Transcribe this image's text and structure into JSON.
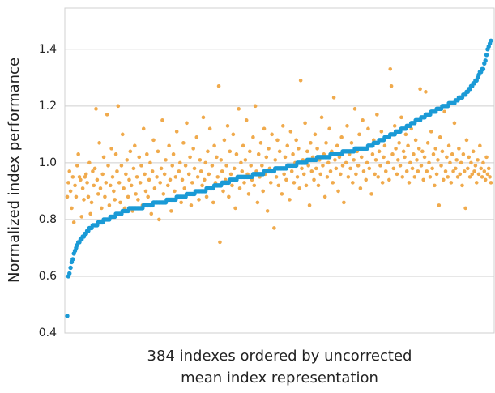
{
  "chart_data": {
    "type": "scatter",
    "ylabel": "Normalized index performance",
    "xlabel": [
      "384 indexes ordered by uncorrected",
      "mean index representation"
    ],
    "ylim": [
      0.4,
      1.545
    ],
    "yticks": [
      0.4,
      0.6,
      0.8,
      {
        "value": 1,
        "label": "1.0"
      },
      1.2,
      1.4
    ],
    "grid": true,
    "series": [
      {
        "color": "#f0aa4c",
        "values": [
          0.88,
          0.93,
          0.97,
          0.9,
          0.84,
          0.95,
          0.79,
          0.92,
          0.88,
          0.99,
          1.03,
          0.95,
          0.94,
          0.81,
          0.91,
          0.87,
          0.95,
          0.96,
          0.93,
          0.88,
          1.0,
          0.82,
          0.86,
          0.97,
          0.92,
          0.98,
          1.19,
          0.94,
          0.89,
          1.07,
          0.91,
          0.84,
          0.96,
          1.02,
          0.88,
          0.93,
          1.17,
          0.99,
          0.85,
          0.92,
          1.05,
          0.95,
          0.9,
          0.87,
          1.03,
          0.97,
          1.2,
          0.93,
          0.86,
          0.99,
          1.1,
          0.91,
          0.84,
          0.96,
          1.01,
          0.88,
          0.94,
          1.04,
          0.92,
          0.83,
          0.98,
          1.06,
          0.89,
          0.95,
          0.87,
          1.02,
          0.93,
          0.99,
          0.85,
          1.12,
          0.96,
          0.9,
          1.03,
          0.88,
          0.94,
          1.0,
          0.82,
          0.97,
          1.08,
          0.91,
          0.86,
          0.95,
          1.04,
          0.8,
          0.93,
          0.98,
          1.15,
          0.89,
          0.96,
          1.01,
          0.87,
          0.92,
          1.06,
          0.94,
          0.83,
          0.99,
          1.03,
          0.9,
          0.95,
          1.11,
          0.88,
          0.97,
          1.0,
          0.86,
          0.94,
          1.07,
          0.91,
          0.99,
          1.14,
          0.89,
          0.96,
          1.02,
          0.85,
          0.93,
          1.05,
          0.98,
          0.9,
          1.09,
          0.95,
          0.87,
          1.01,
          0.97,
          0.92,
          1.16,
          0.94,
          1.0,
          0.88,
          1.04,
          0.96,
          1.12,
          0.91,
          0.99,
          0.86,
          1.06,
          0.93,
          1.02,
          0.95,
          1.27,
          0.72,
          1.01,
          0.97,
          0.9,
          1.08,
          0.94,
          0.99,
          1.13,
          0.88,
          1.04,
          0.96,
          0.92,
          1.1,
          0.98,
          0.84,
          1.03,
          0.95,
          1.19,
          0.91,
          1.0,
          0.97,
          1.06,
          0.93,
          1.01,
          1.15,
          0.96,
          0.89,
          1.04,
          0.99,
          0.94,
          1.09,
          0.92,
          1.2,
          0.97,
          0.86,
          1.03,
          0.95,
          1.07,
          0.99,
          0.9,
          1.12,
          0.96,
          1.02,
          0.83,
          1.05,
          0.98,
          0.93,
          1.1,
          0.97,
          0.77,
          1.01,
          0.95,
          1.08,
          0.92,
          1.04,
          0.98,
          0.89,
          1.13,
          0.96,
          1.02,
          0.94,
          1.06,
          0.99,
          0.87,
          1.11,
          0.97,
          1.03,
          0.93,
          1.0,
          1.08,
          0.95,
          1.05,
          0.91,
          1.29,
          0.98,
          1.01,
          0.96,
          1.14,
          0.92,
          1.04,
          0.99,
          0.85,
          1.07,
          0.97,
          1.02,
          0.94,
          1.1,
          0.98,
          1.05,
          0.92,
          1.01,
          0.96,
          1.16,
          0.99,
          1.03,
          0.88,
          1.07,
          0.95,
          1.0,
          1.12,
          0.97,
          1.04,
          0.93,
          1.23,
          1.01,
          0.98,
          1.06,
          0.9,
          1.02,
          0.96,
          1.09,
          0.99,
          0.86,
          1.04,
          1.0,
          1.13,
          0.95,
          1.03,
          0.98,
          1.07,
          0.93,
          1.01,
          1.19,
          0.96,
          1.04,
          0.99,
          1.1,
          0.91,
          1.02,
          1.15,
          0.97,
          1.05,
          0.94,
          1.0,
          1.12,
          0.98,
          1.06,
          0.89,
          1.03,
          1.08,
          0.96,
          1.01,
          1.17,
          0.95,
          1.04,
          0.99,
          1.11,
          0.93,
          1.02,
          1.06,
          0.97,
          1.09,
          1.0,
          0.94,
          1.33,
          1.27,
          1.03,
          0.98,
          1.13,
          1.05,
          0.96,
          1.01,
          1.07,
          0.99,
          1.16,
          0.95,
          1.04,
          1.02,
          1.1,
          0.97,
          1.06,
          0.93,
          1.0,
          1.12,
          0.98,
          1.03,
          0.95,
          1.08,
          1.01,
          0.97,
          1.05,
          1.26,
          0.99,
          1.04,
          0.94,
          1.02,
          1.25,
          0.97,
          1.07,
          1.0,
          0.95,
          1.11,
          0.98,
          1.03,
          0.92,
          1.05,
          0.96,
          1.01,
          0.85,
          1.09,
          0.99,
          1.04,
          0.94,
          1.18,
          0.97,
          1.02,
          0.95,
          1.06,
          1.0,
          0.93,
          1.03,
          0.97,
          1.14,
          0.98,
          1.01,
          0.95,
          1.05,
          0.96,
          1.0,
          0.92,
          1.03,
          0.97,
          0.84,
          1.08,
          0.98,
          1.02,
          0.95,
          1.0,
          0.96,
          1.04,
          0.97,
          0.99,
          0.93,
          1.01,
          0.96,
          1.06,
          0.98,
          0.95,
          1.0,
          0.97,
          0.94,
          1.02,
          0.96,
          0.98,
          0.95,
          0.93
        ]
      },
      {
        "color": "#1a9ad6",
        "values": [
          0.46,
          0.6,
          0.61,
          0.63,
          0.65,
          0.66,
          0.68,
          0.69,
          0.7,
          0.71,
          0.72,
          0.72,
          0.73,
          0.73,
          0.74,
          0.74,
          0.75,
          0.75,
          0.76,
          0.76,
          0.77,
          0.77,
          0.77,
          0.78,
          0.78,
          0.78,
          0.78,
          0.78,
          0.79,
          0.79,
          0.79,
          0.79,
          0.79,
          0.8,
          0.8,
          0.8,
          0.8,
          0.8,
          0.8,
          0.81,
          0.81,
          0.81,
          0.81,
          0.81,
          0.82,
          0.82,
          0.82,
          0.82,
          0.82,
          0.82,
          0.83,
          0.83,
          0.83,
          0.83,
          0.83,
          0.83,
          0.84,
          0.84,
          0.84,
          0.84,
          0.84,
          0.84,
          0.84,
          0.84,
          0.84,
          0.84,
          0.84,
          0.84,
          0.84,
          0.85,
          0.85,
          0.85,
          0.85,
          0.85,
          0.85,
          0.85,
          0.85,
          0.85,
          0.86,
          0.86,
          0.86,
          0.86,
          0.86,
          0.86,
          0.86,
          0.86,
          0.86,
          0.86,
          0.86,
          0.86,
          0.87,
          0.87,
          0.87,
          0.87,
          0.87,
          0.87,
          0.87,
          0.87,
          0.87,
          0.88,
          0.88,
          0.88,
          0.88,
          0.88,
          0.88,
          0.88,
          0.88,
          0.88,
          0.89,
          0.89,
          0.89,
          0.89,
          0.89,
          0.89,
          0.89,
          0.89,
          0.9,
          0.9,
          0.9,
          0.9,
          0.9,
          0.9,
          0.9,
          0.9,
          0.9,
          0.9,
          0.91,
          0.91,
          0.91,
          0.91,
          0.91,
          0.91,
          0.91,
          0.92,
          0.92,
          0.92,
          0.92,
          0.92,
          0.92,
          0.92,
          0.93,
          0.93,
          0.93,
          0.93,
          0.93,
          0.93,
          0.93,
          0.94,
          0.94,
          0.94,
          0.94,
          0.94,
          0.94,
          0.94,
          0.95,
          0.95,
          0.95,
          0.95,
          0.95,
          0.95,
          0.95,
          0.95,
          0.95,
          0.95,
          0.95,
          0.95,
          0.95,
          0.95,
          0.96,
          0.96,
          0.96,
          0.96,
          0.96,
          0.96,
          0.96,
          0.96,
          0.96,
          0.96,
          0.97,
          0.97,
          0.97,
          0.97,
          0.97,
          0.97,
          0.97,
          0.97,
          0.97,
          0.97,
          0.98,
          0.98,
          0.98,
          0.98,
          0.98,
          0.98,
          0.98,
          0.98,
          0.98,
          0.98,
          0.98,
          0.99,
          0.99,
          0.99,
          0.99,
          0.99,
          0.99,
          0.99,
          0.99,
          0.99,
          1.0,
          1.0,
          1.0,
          1.0,
          1.0,
          1.0,
          1.0,
          1.0,
          1.0,
          1.01,
          1.01,
          1.01,
          1.01,
          1.01,
          1.01,
          1.01,
          1.01,
          1.01,
          1.02,
          1.02,
          1.02,
          1.02,
          1.02,
          1.02,
          1.02,
          1.02,
          1.02,
          1.02,
          1.02,
          1.02,
          1.03,
          1.03,
          1.03,
          1.03,
          1.03,
          1.03,
          1.03,
          1.03,
          1.03,
          1.03,
          1.03,
          1.04,
          1.04,
          1.04,
          1.04,
          1.04,
          1.04,
          1.04,
          1.04,
          1.04,
          1.04,
          1.04,
          1.05,
          1.05,
          1.05,
          1.05,
          1.05,
          1.05,
          1.05,
          1.05,
          1.05,
          1.05,
          1.05,
          1.05,
          1.06,
          1.06,
          1.06,
          1.06,
          1.06,
          1.07,
          1.07,
          1.07,
          1.07,
          1.07,
          1.08,
          1.08,
          1.08,
          1.08,
          1.08,
          1.09,
          1.09,
          1.09,
          1.09,
          1.09,
          1.1,
          1.1,
          1.1,
          1.1,
          1.1,
          1.11,
          1.11,
          1.11,
          1.11,
          1.11,
          1.12,
          1.12,
          1.12,
          1.12,
          1.12,
          1.13,
          1.13,
          1.13,
          1.13,
          1.14,
          1.14,
          1.14,
          1.14,
          1.15,
          1.15,
          1.15,
          1.15,
          1.15,
          1.16,
          1.16,
          1.16,
          1.16,
          1.17,
          1.17,
          1.17,
          1.17,
          1.17,
          1.18,
          1.18,
          1.18,
          1.18,
          1.18,
          1.19,
          1.19,
          1.19,
          1.19,
          1.19,
          1.2,
          1.2,
          1.2,
          1.2,
          1.2,
          1.2,
          1.21,
          1.21,
          1.21,
          1.21,
          1.21,
          1.21,
          1.22,
          1.22,
          1.22,
          1.23,
          1.23,
          1.23,
          1.23,
          1.24,
          1.24,
          1.24,
          1.25,
          1.25,
          1.26,
          1.26,
          1.27,
          1.27,
          1.28,
          1.28,
          1.29,
          1.29,
          1.3,
          1.31,
          1.32,
          1.32,
          1.33,
          1.33,
          1.35,
          1.36,
          1.38,
          1.4,
          1.41,
          1.42,
          1.43
        ]
      }
    ]
  }
}
